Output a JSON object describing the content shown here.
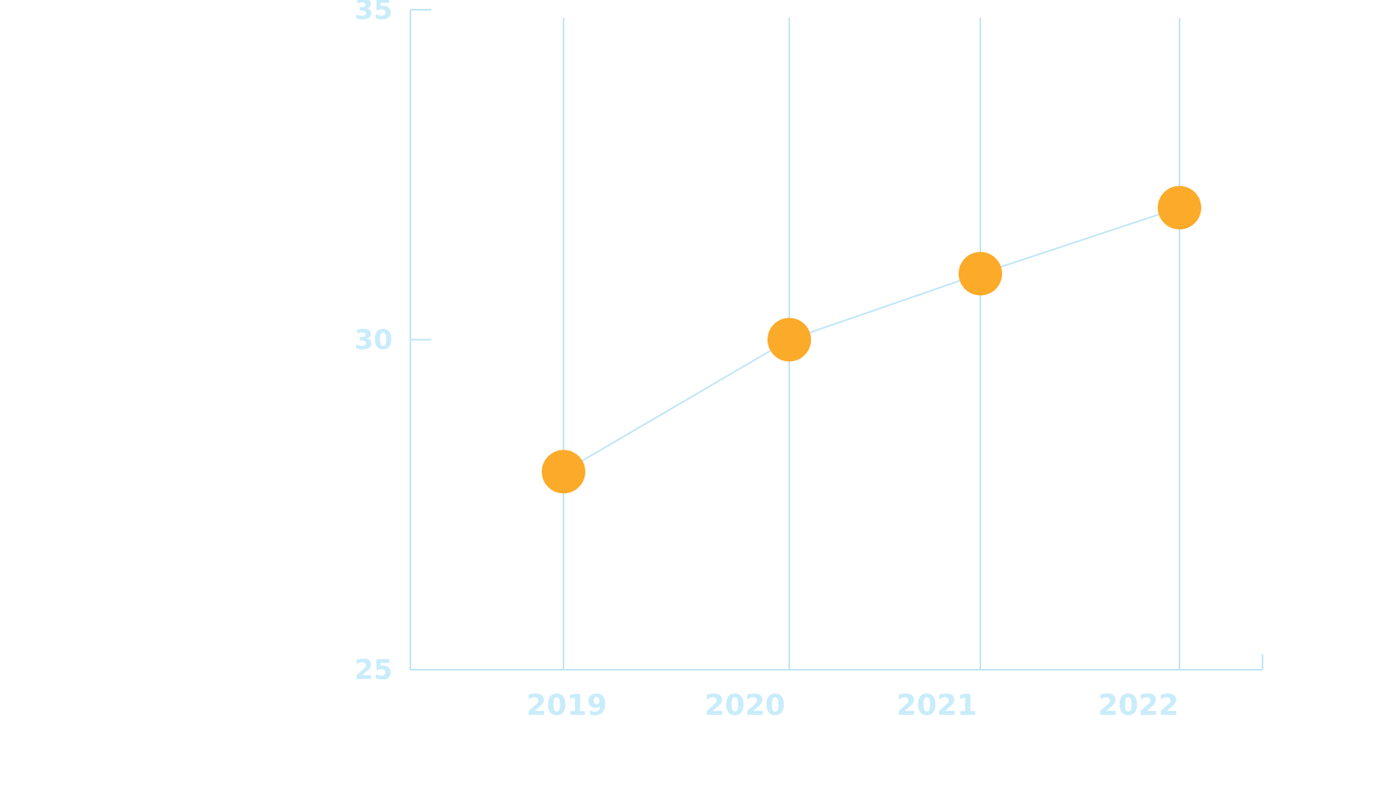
{
  "chart_data": {
    "type": "line",
    "categories": [
      "2019",
      "2020",
      "2021",
      "2022"
    ],
    "values": [
      28,
      30,
      31,
      32
    ],
    "color": "#fbab29",
    "line_color": "#bfe6f5",
    "ylim": [
      25,
      35
    ],
    "yticks": [
      25,
      30,
      35
    ],
    "grid": true
  }
}
